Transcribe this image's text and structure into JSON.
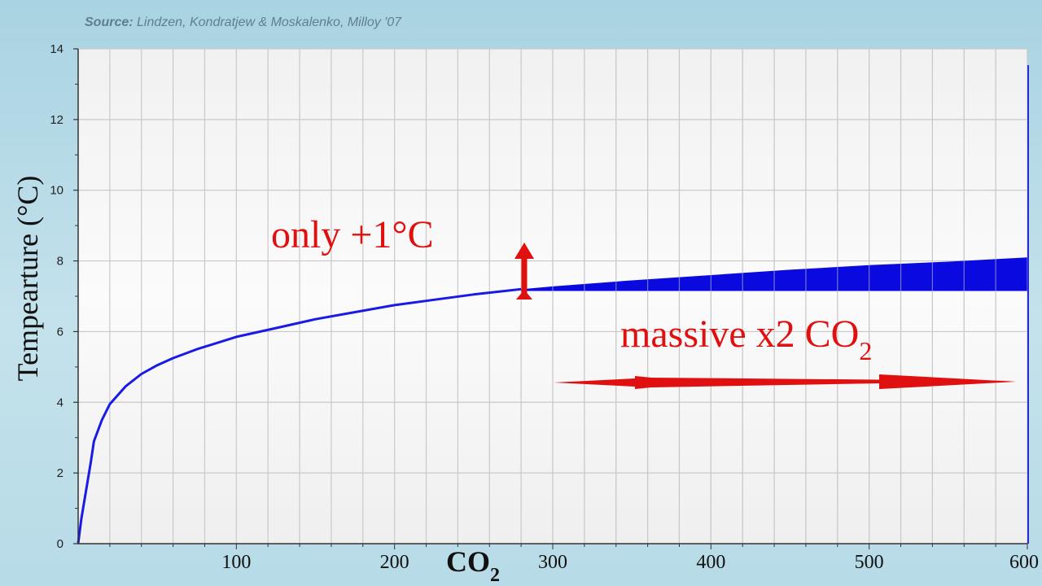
{
  "source": {
    "label": "Source:",
    "text": "Lindzen, Kondratjew & Moskalenko, Milloy '07"
  },
  "chart_data": {
    "type": "line",
    "title": "",
    "xlabel": "CO",
    "xlabel_sub": "2",
    "ylabel": "Tempearture (°C)",
    "xlim": [
      0,
      600
    ],
    "ylim": [
      0,
      14
    ],
    "x_ticks": [
      100,
      200,
      300,
      400,
      500,
      600
    ],
    "y_ticks": [
      0,
      2,
      4,
      6,
      8,
      10,
      12,
      14
    ],
    "grid": true,
    "series": [
      {
        "color": "#1a1ae6",
        "x": [
          0,
          2,
          5,
          8,
          10,
          15,
          20,
          25,
          30,
          40,
          50,
          60,
          75,
          100,
          125,
          150,
          175,
          200,
          225,
          250,
          280
        ],
        "y": [
          0,
          0.7,
          1.5,
          2.3,
          2.9,
          3.5,
          3.95,
          4.2,
          4.45,
          4.8,
          5.05,
          5.25,
          5.5,
          5.85,
          6.1,
          6.35,
          6.55,
          6.75,
          6.9,
          7.05,
          7.2
        ]
      }
    ],
    "shaded_band": {
      "color": "#0a0ae0",
      "x": [
        280,
        300,
        350,
        400,
        450,
        500,
        550,
        600
      ],
      "y_low": 7.15,
      "y_high": [
        7.2,
        7.28,
        7.45,
        7.6,
        7.75,
        7.88,
        7.98,
        8.1
      ]
    },
    "annotations": [
      {
        "text": "only +1°C",
        "color": "#e01010"
      },
      {
        "text": "massive x2 CO",
        "sub": "2",
        "color": "#e01010"
      }
    ]
  }
}
